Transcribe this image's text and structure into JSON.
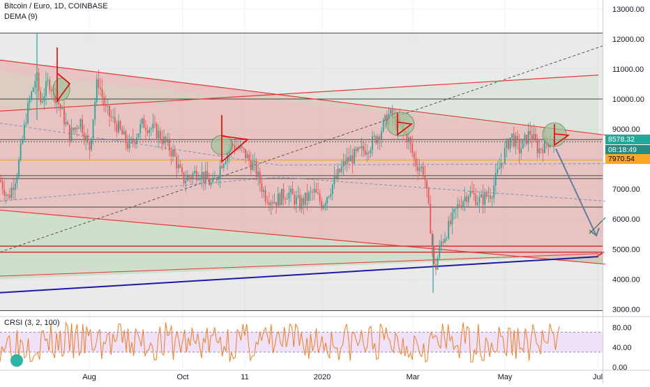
{
  "header": {
    "symbol_line": "Bitcoin / Euro, 1D, COINBASE",
    "indicator_line": "DEMA (9)"
  },
  "badges": {
    "last_price": "8578.32",
    "countdown": "08:18:49",
    "level": "7970.54"
  },
  "rsi_panel": {
    "label": "CRSI (3, 2, 100)"
  },
  "colors": {
    "background": "#ffffff",
    "up_candle": "#26a69a",
    "down_candle": "#ef5350",
    "channel_line": "#e53935",
    "channel_fill": "#f4c7c3",
    "support_line": "#1a1aa6",
    "badge_green": "#26a69a",
    "badge_dark": "#2a8c7e",
    "badge_orange": "#f9a825",
    "rsi_line": "#f57c1f",
    "rsi_band": "#e9d5f7",
    "projection_arrow": "#607d9b"
  },
  "chart_data": [
    {
      "type": "candlestick",
      "title": "Bitcoin / Euro, 1D, COINBASE",
      "x_ticks": [
        "Aug",
        "Oct",
        "11",
        "2020",
        "Mar",
        "May",
        "Jul"
      ],
      "y_ticks": [
        3000,
        4000,
        5000,
        6000,
        7000,
        8000,
        9000,
        10000,
        11000,
        12000,
        13000
      ],
      "ylim": [
        2800,
        13300
      ],
      "price_path": [
        [
          0,
          7300
        ],
        [
          12,
          6700
        ],
        [
          25,
          7600
        ],
        [
          38,
          9500
        ],
        [
          52,
          10800
        ],
        [
          58,
          9900
        ],
        [
          70,
          10600
        ],
        [
          85,
          9800
        ],
        [
          100,
          8800
        ],
        [
          115,
          9300
        ],
        [
          128,
          8300
        ],
        [
          140,
          10700
        ],
        [
          152,
          9600
        ],
        [
          168,
          9100
        ],
        [
          185,
          8400
        ],
        [
          205,
          9200
        ],
        [
          225,
          8900
        ],
        [
          248,
          8200
        ],
        [
          262,
          7300
        ],
        [
          285,
          7600
        ],
        [
          305,
          7100
        ],
        [
          318,
          7900
        ],
        [
          333,
          8500
        ],
        [
          350,
          8200
        ],
        [
          365,
          7700
        ],
        [
          380,
          6800
        ],
        [
          395,
          6600
        ],
        [
          412,
          6900
        ],
        [
          430,
          6500
        ],
        [
          450,
          6900
        ],
        [
          462,
          6500
        ],
        [
          478,
          7200
        ],
        [
          495,
          7900
        ],
        [
          515,
          8200
        ],
        [
          532,
          8500
        ],
        [
          545,
          8900
        ],
        [
          558,
          9500
        ],
        [
          572,
          9100
        ],
        [
          585,
          8700
        ],
        [
          595,
          7900
        ],
        [
          608,
          7600
        ],
        [
          618,
          5600
        ],
        [
          623,
          4200
        ],
        [
          632,
          5200
        ],
        [
          645,
          5800
        ],
        [
          658,
          6500
        ],
        [
          672,
          6900
        ],
        [
          688,
          6600
        ],
        [
          705,
          6900
        ],
        [
          720,
          8000
        ],
        [
          733,
          8800
        ],
        [
          745,
          8300
        ],
        [
          760,
          8900
        ],
        [
          772,
          8300
        ],
        [
          785,
          8600
        ],
        [
          795,
          8578
        ]
      ],
      "lines": {
        "channel_upper": [
          [
            0,
            11300
          ],
          [
            868,
            8800
          ]
        ],
        "channel_lower": [
          [
            0,
            6300
          ],
          [
            868,
            4500
          ]
        ],
        "rising_line": [
          [
            0,
            9600
          ],
          [
            858,
            10800
          ]
        ],
        "diagonal_dashed": [
          [
            0,
            4900
          ],
          [
            868,
            11800
          ]
        ],
        "support": [
          [
            0,
            3550
          ],
          [
            858,
            4750
          ]
        ],
        "dotted_blue_upper": [
          [
            0,
            9200
          ],
          [
            400,
            7800
          ],
          [
            868,
            7850
          ]
        ],
        "dotted_blue_lower": [
          [
            0,
            6600
          ],
          [
            400,
            7400
          ],
          [
            868,
            6600
          ]
        ],
        "horizontal_levels": [
          12200,
          10000,
          8650,
          7970,
          7450,
          7350,
          6400,
          5100,
          4900,
          2950
        ],
        "projection_arrow": [
          [
            795,
            8578
          ],
          [
            855,
            5200
          ]
        ]
      }
    },
    {
      "type": "line",
      "title": "CRSI (3, 2, 100)",
      "y_ticks": [
        0,
        40,
        80
      ],
      "ylim": [
        -5,
        100
      ],
      "band": [
        30,
        70
      ]
    }
  ]
}
